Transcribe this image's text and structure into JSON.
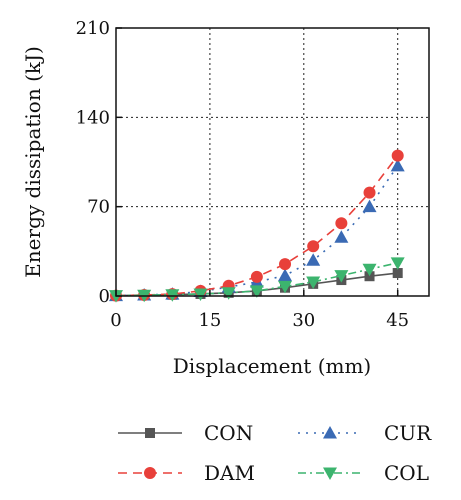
{
  "chart_data": {
    "type": "line",
    "xlabel": "Displacement (mm)",
    "ylabel": "Energy dissipation (kJ)",
    "xlim": [
      0,
      50
    ],
    "ylim": [
      0,
      210
    ],
    "xticks": [
      0,
      15,
      30,
      45
    ],
    "yticks": [
      0,
      70,
      140,
      210
    ],
    "grid": true,
    "legend_position": "bottom",
    "series": [
      {
        "name": "CON",
        "color": "#555555",
        "marker": "square",
        "dash": "solid",
        "x": [
          0,
          4.5,
          9,
          13.5,
          18,
          22.5,
          27,
          31.5,
          36,
          40.5,
          45
        ],
        "y": [
          0.3,
          0.6,
          1.0,
          1.6,
          2.5,
          4.0,
          6.5,
          9.5,
          12.5,
          15.5,
          18
        ]
      },
      {
        "name": "CUR",
        "color": "#3a6ab4",
        "marker": "triangle-up",
        "dash": "dot",
        "x": [
          0,
          4.5,
          9,
          13.5,
          18,
          22.5,
          27,
          31.5,
          36,
          40.5,
          45
        ],
        "y": [
          0.3,
          0.8,
          1.5,
          3.5,
          7,
          11,
          16,
          28,
          46,
          70,
          102
        ]
      },
      {
        "name": "DAM",
        "color": "#e8403a",
        "marker": "circle",
        "dash": "dash",
        "x": [
          0,
          4.5,
          9,
          13.5,
          18,
          22.5,
          27,
          31.5,
          36,
          40.5,
          45
        ],
        "y": [
          0.3,
          0.8,
          1.5,
          4,
          8,
          15,
          25,
          39,
          57,
          81,
          110
        ]
      },
      {
        "name": "COL",
        "color": "#3cb46e",
        "marker": "triangle-down",
        "dash": "dashdot",
        "x": [
          0,
          4.5,
          9,
          13.5,
          18,
          22.5,
          27,
          31.5,
          36,
          40.5,
          45
        ],
        "y": [
          0.3,
          0.6,
          1.0,
          1.6,
          2.5,
          4.0,
          7.5,
          11,
          16,
          21,
          26
        ]
      }
    ]
  }
}
